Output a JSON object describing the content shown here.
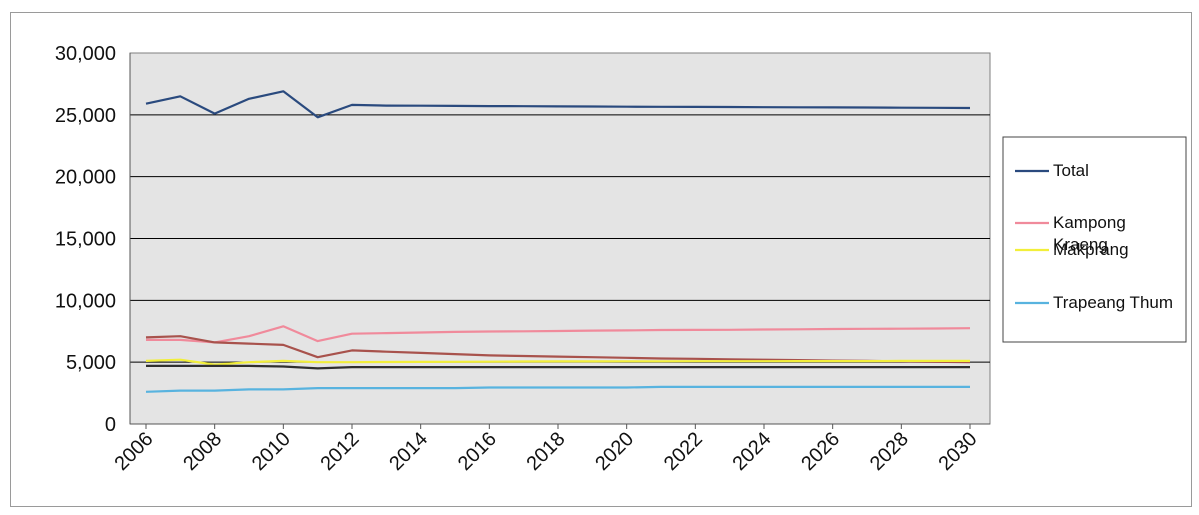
{
  "chart_data": {
    "type": "line",
    "x": [
      2006,
      2007,
      2008,
      2009,
      2010,
      2011,
      2012,
      2013,
      2014,
      2015,
      2016,
      2017,
      2018,
      2019,
      2020,
      2021,
      2022,
      2023,
      2024,
      2025,
      2026,
      2027,
      2028,
      2029,
      2030
    ],
    "x_tick_labels": [
      "2006",
      "2008",
      "2010",
      "2012",
      "2014",
      "2016",
      "2018",
      "2020",
      "2022",
      "2024",
      "2026",
      "2028",
      "2030"
    ],
    "ylim": [
      0,
      30000
    ],
    "y_ticks": [
      0,
      5000,
      10000,
      15000,
      20000,
      25000,
      30000
    ],
    "y_tick_labels": [
      "0",
      "5,000",
      "10,000",
      "15,000",
      "20,000",
      "25,000",
      "30,000"
    ],
    "grid": "horizontal",
    "legend_position": "right",
    "series": [
      {
        "name": "Total",
        "color": "#2a4a7e",
        "values": [
          25900,
          26500,
          25100,
          26300,
          26900,
          24800,
          25800,
          25750,
          25740,
          25720,
          25710,
          25700,
          25680,
          25670,
          25660,
          25650,
          25640,
          25630,
          25620,
          25610,
          25600,
          25590,
          25580,
          25570,
          25550
        ]
      },
      {
        "name": "Kampong Kraeng",
        "color": "#f08a9b",
        "values": [
          6800,
          6800,
          6600,
          7100,
          7900,
          6700,
          7300,
          7350,
          7400,
          7450,
          7480,
          7500,
          7520,
          7550,
          7570,
          7600,
          7610,
          7620,
          7640,
          7660,
          7680,
          7700,
          7710,
          7720,
          7750
        ]
      },
      {
        "name": "",
        "color": "#a8524c",
        "values": [
          7000,
          7100,
          6600,
          6500,
          6400,
          5400,
          5950,
          5850,
          5750,
          5650,
          5550,
          5500,
          5450,
          5400,
          5350,
          5300,
          5270,
          5230,
          5200,
          5170,
          5130,
          5100,
          5070,
          5030,
          5000
        ]
      },
      {
        "name": "Makprang",
        "color": "#f2ef3a",
        "values": [
          5100,
          5200,
          4800,
          5000,
          5100,
          5000,
          5000,
          5010,
          5020,
          5030,
          5040,
          5050,
          5060,
          5060,
          5070,
          5070,
          5080,
          5080,
          5080,
          5090,
          5090,
          5090,
          5100,
          5100,
          5100
        ]
      },
      {
        "name": "",
        "color": "#2f2f2f",
        "values": [
          4700,
          4700,
          4700,
          4700,
          4650,
          4500,
          4600,
          4600,
          4600,
          4600,
          4600,
          4600,
          4600,
          4600,
          4600,
          4600,
          4600,
          4600,
          4600,
          4600,
          4600,
          4600,
          4600,
          4600,
          4600
        ]
      },
      {
        "name": "Trapeang Thum",
        "color": "#58b3df",
        "values": [
          2600,
          2700,
          2700,
          2800,
          2800,
          2900,
          2900,
          2900,
          2900,
          2900,
          2950,
          2950,
          2950,
          2950,
          2950,
          3000,
          3000,
          3000,
          3000,
          3000,
          3000,
          3000,
          3000,
          3000,
          3000
        ]
      }
    ],
    "legend": [
      {
        "label": "Total",
        "color": "#2a4a7e"
      },
      {
        "label": "Kampong\nKraeng",
        "color": "#f08a9b"
      },
      {
        "label": "Makprang",
        "color": "#f2ef3a"
      },
      {
        "label": "Trapeang Thum",
        "color": "#58b3df"
      }
    ]
  }
}
